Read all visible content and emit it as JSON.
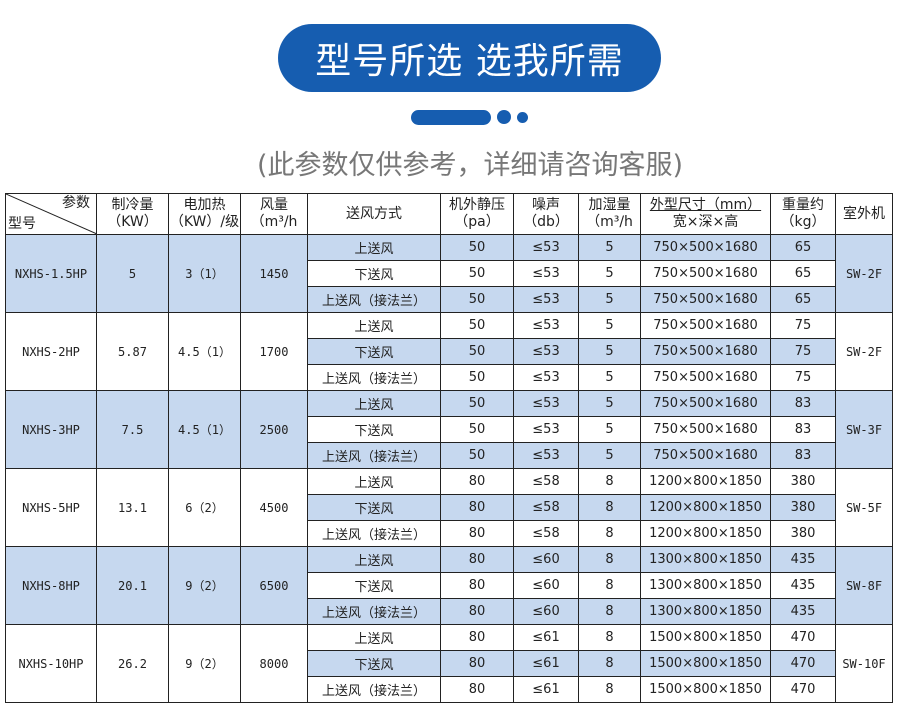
{
  "title": "型号所选 选我所需",
  "subtitle": "(此参数仅供参考，详细请咨询客服)",
  "colors": {
    "accent": "#165db0",
    "row_shade": "#c6d8ef"
  },
  "table": {
    "header": {
      "param": "参数",
      "model": "型号",
      "cooling": [
        "制冷量",
        "（KW）"
      ],
      "heating": [
        "电加热",
        "（KW）/级"
      ],
      "airflow": [
        "风量",
        "（m³/h"
      ],
      "supply": "送风方式",
      "pressure": [
        "机外静压",
        "（pa）"
      ],
      "noise": [
        "噪声",
        "（db）"
      ],
      "humid": [
        "加湿量",
        "（m³/h"
      ],
      "size": [
        "外型尺寸（mm）",
        "宽×深×高"
      ],
      "weight": [
        "重量约",
        "（kg）"
      ],
      "outdoor": "室外机"
    },
    "groups": [
      {
        "model": "NXHS-1.5HP",
        "cooling": "5",
        "heating": "3（1）",
        "airflow": "1450",
        "pressure": "50",
        "noise": "≤53",
        "humid": "5",
        "size": "750×500×1680",
        "weight": "65",
        "outdoor": "SW-2F"
      },
      {
        "model": "NXHS-2HP",
        "cooling": "5.87",
        "heating": "4.5（1）",
        "airflow": "1700",
        "pressure": "50",
        "noise": "≤53",
        "humid": "5",
        "size": "750×500×1680",
        "weight": "75",
        "outdoor": "SW-2F"
      },
      {
        "model": "NXHS-3HP",
        "cooling": "7.5",
        "heating": "4.5（1）",
        "airflow": "2500",
        "pressure": "50",
        "noise": "≤53",
        "humid": "5",
        "size": "750×500×1680",
        "weight": "83",
        "outdoor": "SW-3F"
      },
      {
        "model": "NXHS-5HP",
        "cooling": "13.1",
        "heating": "6（2）",
        "airflow": "4500",
        "pressure": "80",
        "noise": "≤58",
        "humid": "8",
        "size": "1200×800×1850",
        "weight": "380",
        "outdoor": "SW-5F"
      },
      {
        "model": "NXHS-8HP",
        "cooling": "20.1",
        "heating": "9（2）",
        "airflow": "6500",
        "pressure": "80",
        "noise": "≤60",
        "humid": "8",
        "size": "1300×800×1850",
        "weight": "435",
        "outdoor": "SW-8F"
      },
      {
        "model": "NXHS-10HP",
        "cooling": "26.2",
        "heating": "9（2）",
        "airflow": "8000",
        "pressure": "80",
        "noise": "≤61",
        "humid": "8",
        "size": "1500×800×1850",
        "weight": "470",
        "outdoor": "SW-10F"
      }
    ],
    "supply_modes": [
      "上送风",
      "下送风",
      "上送风（接法兰）"
    ]
  }
}
